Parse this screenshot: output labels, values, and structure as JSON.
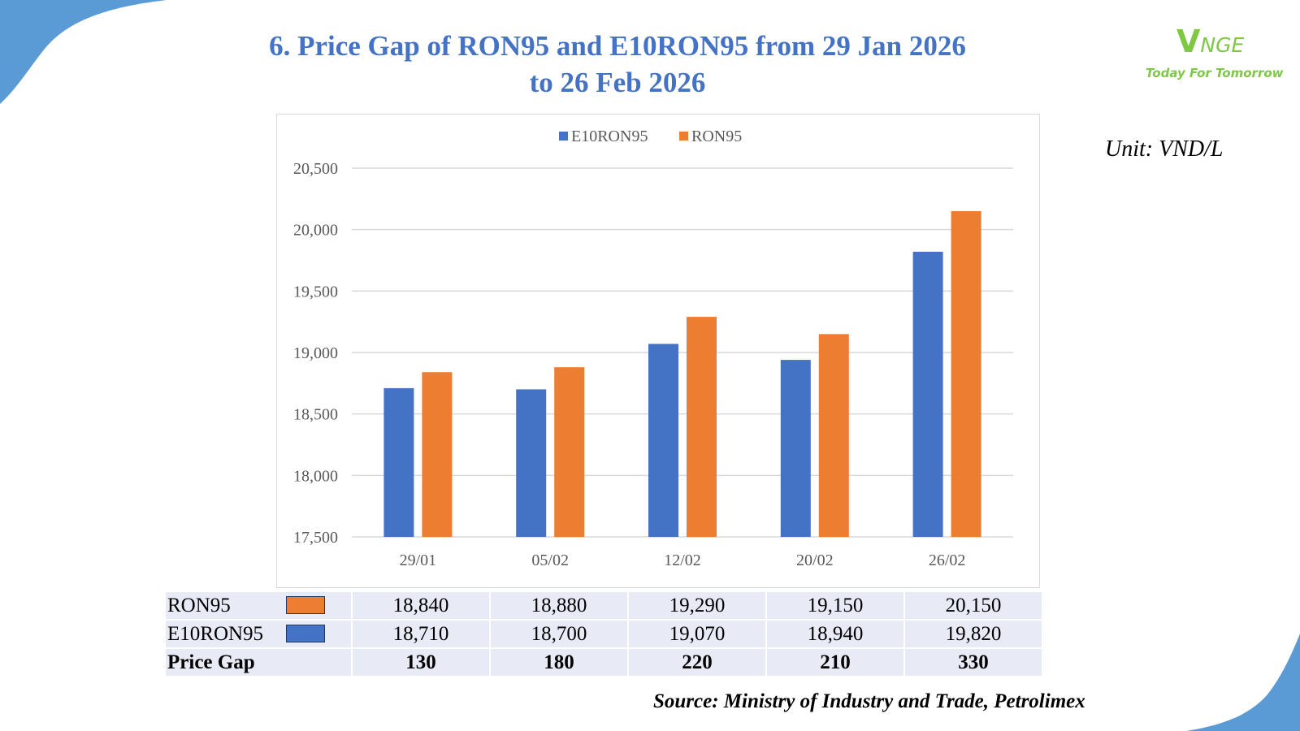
{
  "title": {
    "line1": "6. Price Gap of RON95 and E10RON95 from 29 Jan 2026",
    "line2": "to 26 Feb 2026"
  },
  "logo": {
    "mark_v": "V",
    "mark_rest": "NGE",
    "tagline": "Today For Tomorrow"
  },
  "unit": "Unit: VND/L",
  "source": "Source: Ministry of Industry and Trade, Petrolimex",
  "colors": {
    "accent": "#4472c4",
    "e10ron95": "#4472c4",
    "ron95": "#ed7d31",
    "decor": "#5b9bd5",
    "logo_green": "#7ec846"
  },
  "chart_data": {
    "type": "bar",
    "title": "6. Price Gap of RON95 and E10RON95 from 29 Jan 2026 to 26 Feb 2026",
    "xlabel": "",
    "ylabel": "VND/L",
    "categories": [
      "29/01",
      "05/02",
      "12/02",
      "20/02",
      "26/02"
    ],
    "series": [
      {
        "name": "E10RON95",
        "color": "#4472c4",
        "values": [
          18710,
          18700,
          19070,
          18940,
          19820
        ]
      },
      {
        "name": "RON95",
        "color": "#ed7d31",
        "values": [
          18840,
          18880,
          19290,
          19150,
          20150
        ]
      }
    ],
    "ylim": [
      17500,
      20500
    ],
    "yticks": [
      17500,
      18000,
      18500,
      19000,
      19500,
      20000,
      20500
    ],
    "ytick_labels": [
      "17,500",
      "18,000",
      "18,500",
      "19,000",
      "19,500",
      "20,000",
      "20,500"
    ],
    "grid": true,
    "legend_position": "top-center"
  },
  "table": {
    "rows": [
      {
        "label": "RON95",
        "swatch": "#ed7d31",
        "values": [
          "18,840",
          "18,880",
          "19,290",
          "19,150",
          "20,150"
        ]
      },
      {
        "label": "E10RON95",
        "swatch": "#4472c4",
        "values": [
          "18,710",
          "18,700",
          "19,070",
          "18,940",
          "19,820"
        ]
      },
      {
        "label": "Price Gap",
        "values": [
          "130",
          "180",
          "220",
          "210",
          "330"
        ]
      }
    ]
  }
}
